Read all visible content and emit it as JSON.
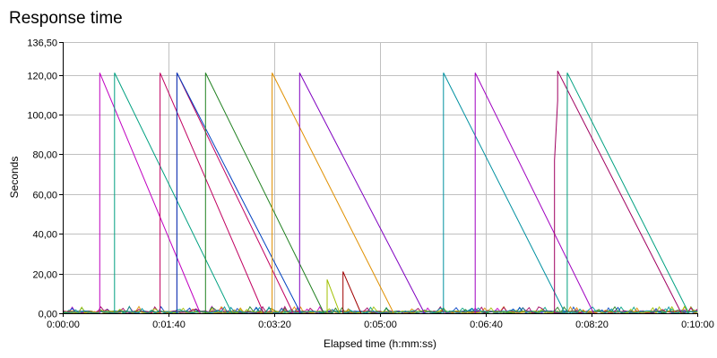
{
  "chart_data": {
    "type": "line",
    "title": "Response time",
    "xlabel": "Elapsed time (h:mm:ss)",
    "ylabel": "Seconds",
    "xlim": [
      0,
      600
    ],
    "ylim": [
      0,
      136.5
    ],
    "x_ticks": [
      0,
      100,
      200,
      300,
      400,
      500,
      600
    ],
    "x_tick_labels": [
      "0:00:00",
      "0:01:40",
      "0:03:20",
      "0:05:00",
      "0:06:40",
      "0:08:20",
      "0:10:00"
    ],
    "y_ticks": [
      0,
      20,
      40,
      60,
      80,
      100,
      120,
      136.5
    ],
    "y_tick_labels": [
      "0,00",
      "20,00",
      "40,00",
      "60,00",
      "80,00",
      "100,00",
      "120,00",
      "136,50"
    ],
    "grid": true,
    "legend": "none",
    "series": [
      {
        "color": "#c000c0",
        "points": [
          [
            35,
            0
          ],
          [
            35,
            121
          ],
          [
            130,
            0
          ]
        ]
      },
      {
        "color": "#00a080",
        "points": [
          [
            49,
            0
          ],
          [
            49,
            121
          ],
          [
            160,
            0
          ]
        ]
      },
      {
        "color": "#c00060",
        "points": [
          [
            92,
            0
          ],
          [
            92,
            121
          ],
          [
            190,
            0
          ]
        ]
      },
      {
        "color": "#c00060",
        "points": [
          [
            108,
            0
          ],
          [
            108,
            121
          ],
          [
            218,
            0
          ]
        ]
      },
      {
        "color": "#0040c0",
        "points": [
          [
            108,
            0
          ],
          [
            108,
            121
          ],
          [
            225,
            0
          ]
        ]
      },
      {
        "color": "#208020",
        "points": [
          [
            135,
            0
          ],
          [
            135,
            121
          ],
          [
            247,
            0
          ]
        ]
      },
      {
        "color": "#e09000",
        "points": [
          [
            198,
            0
          ],
          [
            198,
            121
          ],
          [
            313,
            0
          ]
        ]
      },
      {
        "color": "#8000c0",
        "points": [
          [
            224,
            0
          ],
          [
            224,
            121
          ],
          [
            342,
            0
          ]
        ]
      },
      {
        "color": "#0090a0",
        "points": [
          [
            360,
            0
          ],
          [
            360,
            121
          ],
          [
            475,
            0
          ]
        ]
      },
      {
        "color": "#a000c0",
        "points": [
          [
            390,
            0
          ],
          [
            390,
            121
          ],
          [
            502,
            0
          ]
        ]
      },
      {
        "color": "#a00060",
        "points": [
          [
            465,
            0
          ],
          [
            465,
            77
          ],
          [
            468,
            107
          ],
          [
            468,
            122
          ],
          [
            585,
            0
          ]
        ]
      },
      {
        "color": "#00a080",
        "points": [
          [
            477,
            0
          ],
          [
            477,
            121
          ],
          [
            592,
            0
          ]
        ]
      },
      {
        "color": "#a0c000",
        "points": [
          [
            250,
            0
          ],
          [
            250,
            17
          ],
          [
            262,
            0
          ]
        ]
      },
      {
        "color": "#a00000",
        "points": [
          [
            265,
            0
          ],
          [
            265,
            21
          ],
          [
            282,
            0
          ]
        ]
      }
    ]
  }
}
